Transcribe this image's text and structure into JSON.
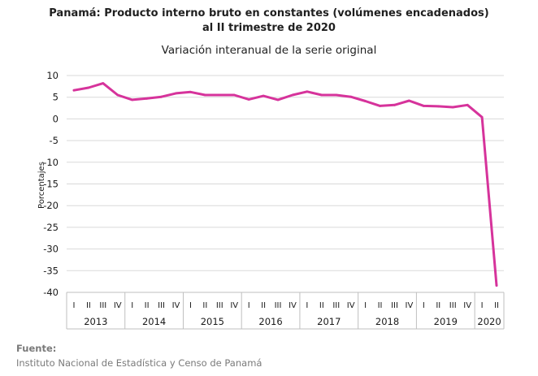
{
  "header": {
    "title_line1": "Panamá: Producto interno bruto en constantes (volúmenes encadenados)",
    "title_line2": "al II trimestre de 2020",
    "subtitle": "Variación interanual de la serie original"
  },
  "footer": {
    "source_label": "Fuente:",
    "source_text": "Instituto Nacional de Estadística y Censo de Panamá"
  },
  "chart_data": {
    "type": "line",
    "title": "Panamá: Producto interno bruto en constantes (volúmenes encadenados) al II trimestre de 2020",
    "subtitle": "Variación interanual de la serie original",
    "ylabel": "Porcentajes",
    "ylim": [
      -40,
      10
    ],
    "yticks": [
      10,
      5,
      0,
      -5,
      -10,
      -15,
      -20,
      -25,
      -30,
      -35,
      -40
    ],
    "grid": true,
    "line_color": "#d6339b",
    "quarters": [
      "I",
      "II",
      "III",
      "IV",
      "I",
      "II",
      "III",
      "IV",
      "I",
      "II",
      "III",
      "IV",
      "I",
      "II",
      "III",
      "IV",
      "I",
      "II",
      "III",
      "IV",
      "I",
      "II",
      "III",
      "IV",
      "I",
      "II",
      "III",
      "IV",
      "I",
      "II"
    ],
    "years": [
      {
        "label": "2013",
        "quarters": 4
      },
      {
        "label": "2014",
        "quarters": 4
      },
      {
        "label": "2015",
        "quarters": 4
      },
      {
        "label": "2016",
        "quarters": 4
      },
      {
        "label": "2017",
        "quarters": 4
      },
      {
        "label": "2018",
        "quarters": 4
      },
      {
        "label": "2019",
        "quarters": 4
      },
      {
        "label": "2020",
        "quarters": 2
      }
    ],
    "values": [
      6.6,
      7.2,
      8.2,
      5.5,
      4.4,
      4.7,
      5.1,
      5.9,
      6.2,
      5.5,
      5.5,
      5.5,
      4.5,
      5.3,
      4.4,
      5.5,
      6.3,
      5.5,
      5.5,
      5.1,
      4.1,
      3.0,
      3.2,
      4.2,
      3.0,
      2.9,
      2.7,
      3.2,
      0.4,
      -38.4
    ]
  }
}
